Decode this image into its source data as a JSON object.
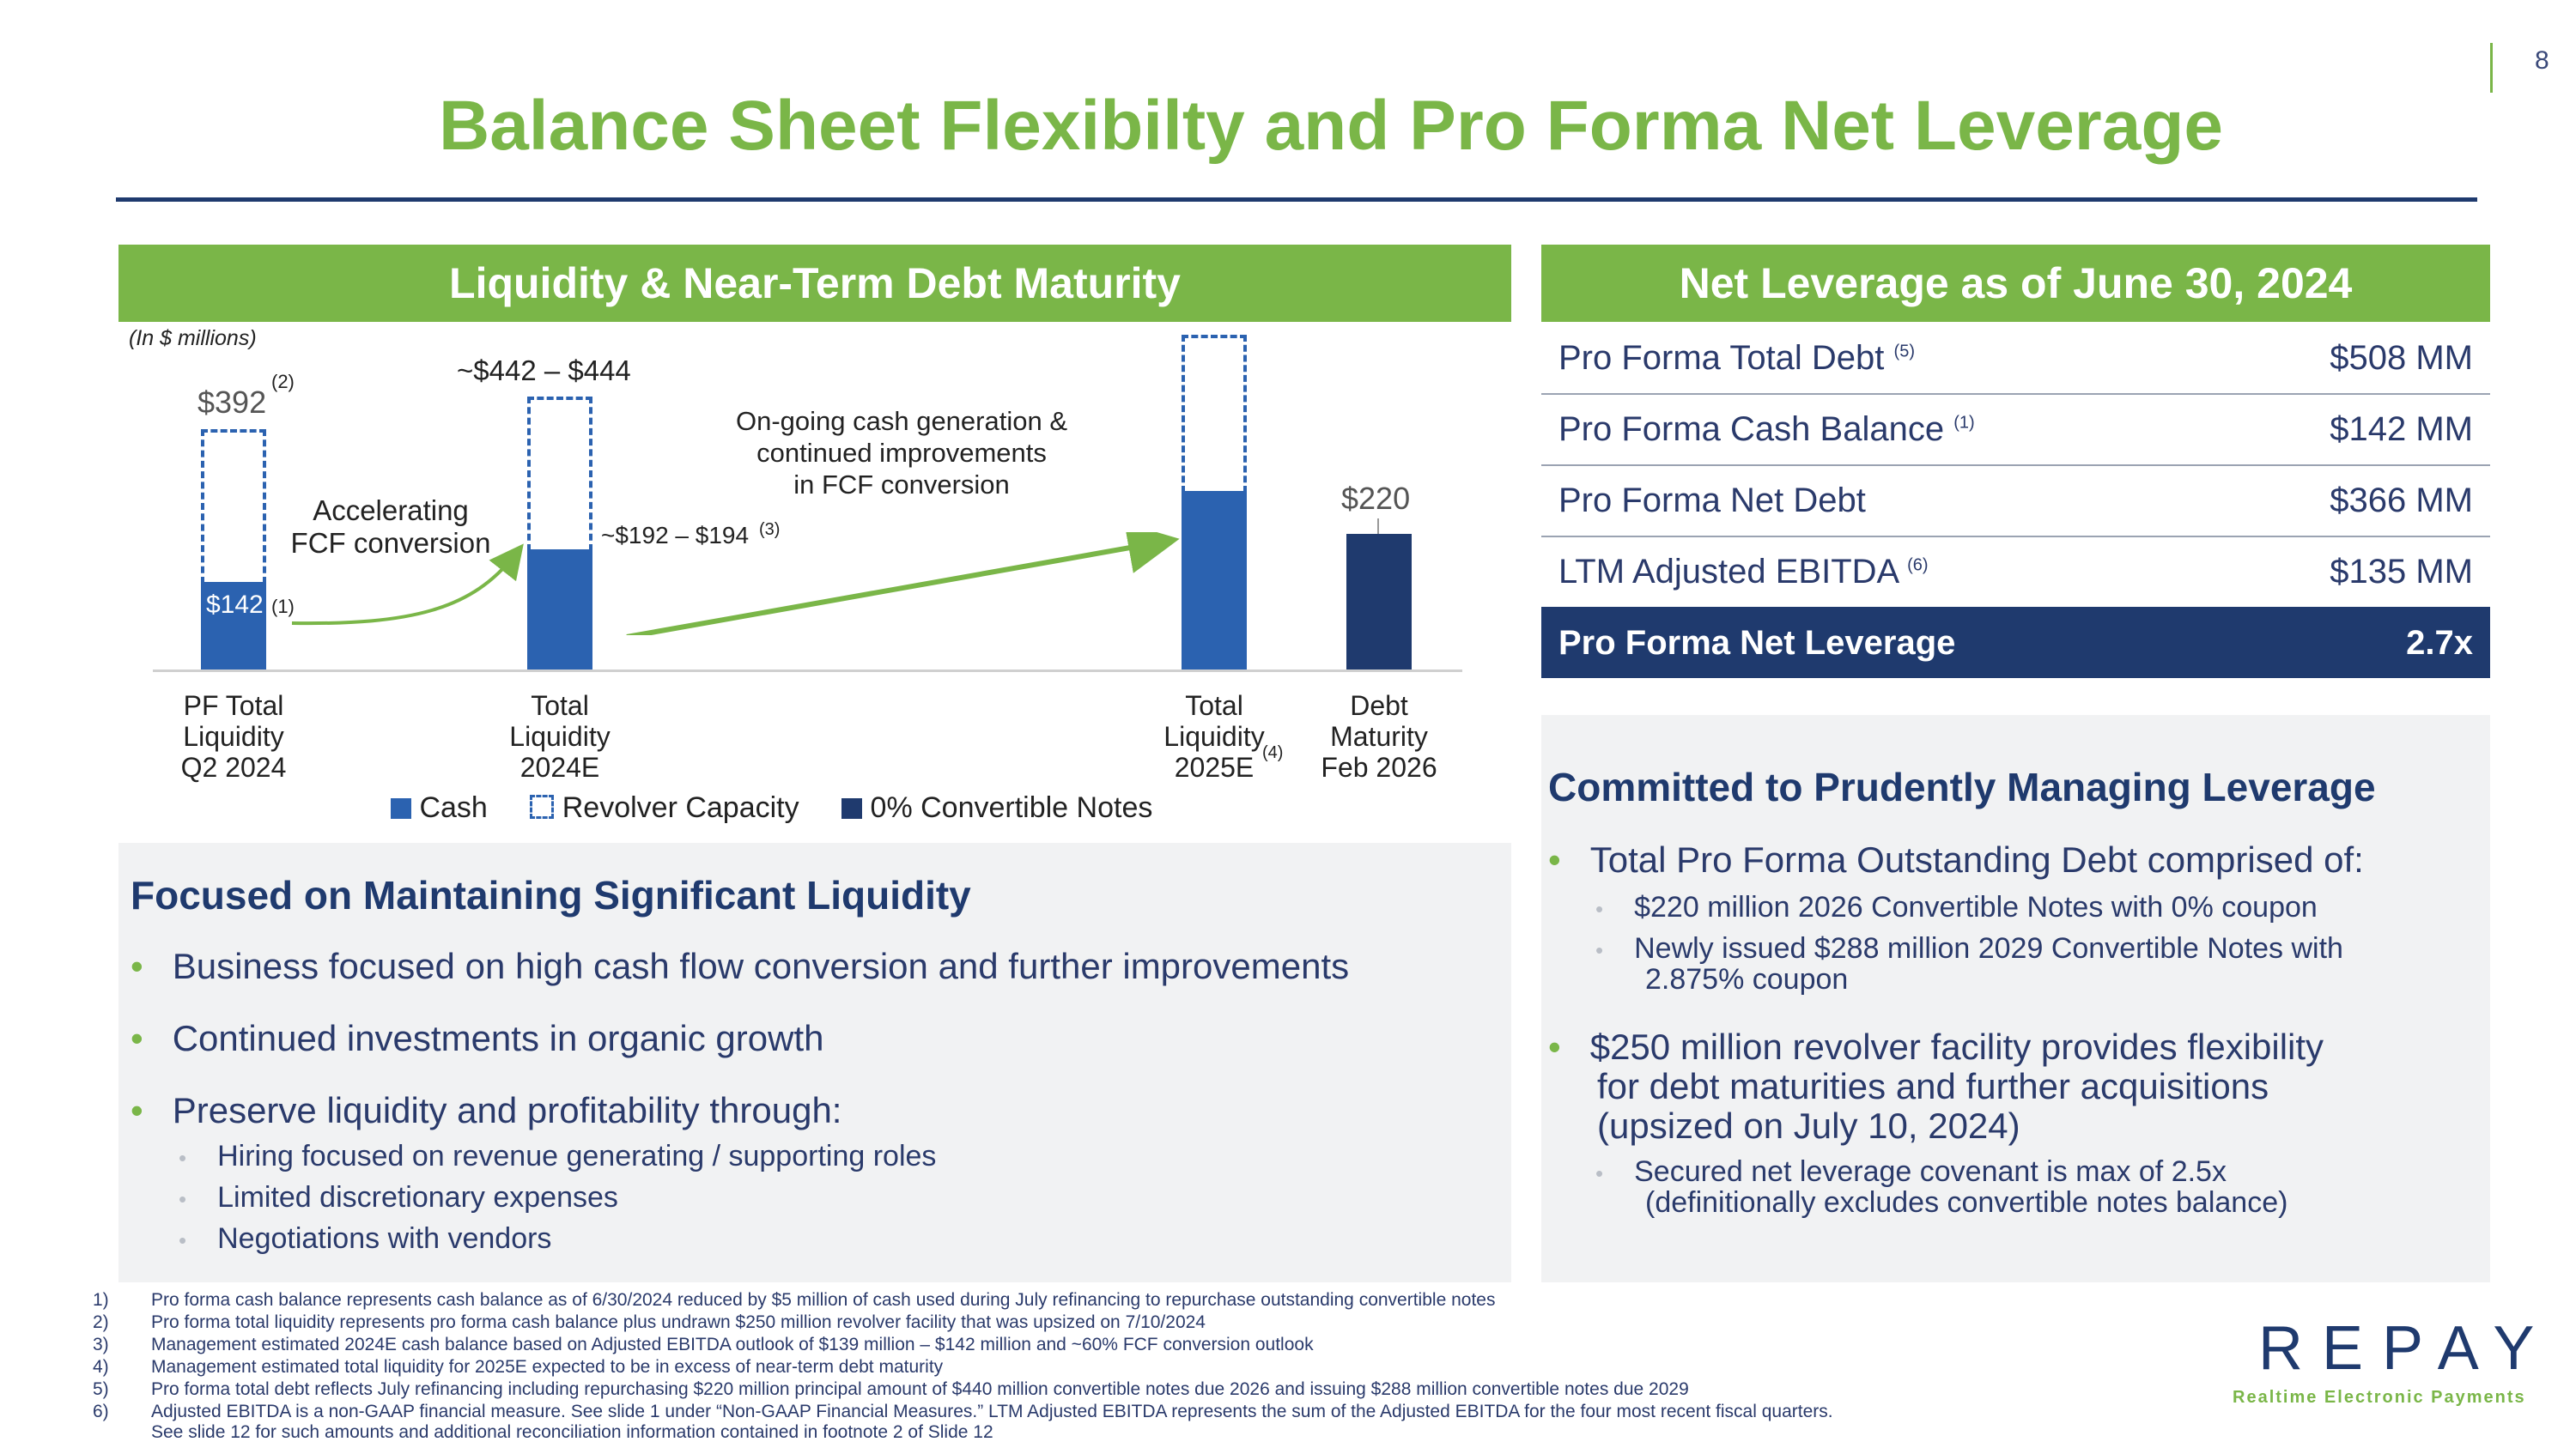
{
  "page_number": "8",
  "title": "Balance Sheet Flexibilty and Pro Forma Net Leverage",
  "liquidity": {
    "header": "Liquidity & Near-Term Debt Maturity",
    "units_note": "(In $ millions)",
    "bars": [
      {
        "label_lines": [
          "PF Total",
          "Liquidity",
          "Q2 2024"
        ],
        "total_label": "$392",
        "total_note": "(2)",
        "cash_label": "$142",
        "cash_note": "(1)"
      },
      {
        "label_lines": [
          "Total",
          "Liquidity",
          "2024E"
        ],
        "total_label": "~$442 – $444",
        "cash_label": "~$192 – $194",
        "cash_note": "(3)"
      },
      {
        "label_lines": [
          "Total",
          "Liquidity",
          "2025E"
        ],
        "label_note": "(4)"
      },
      {
        "label_lines": [
          "Debt",
          "Maturity",
          "Feb 2026"
        ],
        "total_label": "$220"
      }
    ],
    "annotation_1": [
      "Accelerating",
      "FCF conversion"
    ],
    "annotation_2": [
      "On-going cash generation &",
      "continued improvements",
      "in FCF conversion"
    ],
    "legend": {
      "cash": "Cash",
      "revolver": "Revolver Capacity",
      "convertible": "0% Convertible Notes"
    },
    "colors": {
      "cash": "#2b62b0",
      "convertible": "#1f3a6e",
      "accent": "#7ab648"
    }
  },
  "liquidity_focus": {
    "heading": "Focused on Maintaining Significant Liquidity",
    "bullets": [
      "Business focused on high cash flow conversion and further improvements",
      "Continued investments in organic growth",
      "Preserve liquidity and profitability through:"
    ],
    "sub_bullets": [
      "Hiring focused on revenue generating / supporting roles",
      "Limited discretionary expenses",
      "Negotiations with vendors"
    ]
  },
  "leverage": {
    "header": "Net Leverage as of June 30, 2024",
    "rows": [
      {
        "label": "Pro Forma Total Debt",
        "note": "(5)",
        "value": "$508 MM"
      },
      {
        "label": "Pro Forma Cash Balance",
        "note": "(1)",
        "value": "$142 MM"
      },
      {
        "label": "Pro Forma Net Debt",
        "note": "",
        "value": "$366 MM"
      },
      {
        "label": "LTM Adjusted EBITDA",
        "note": "(6)",
        "value": "$135 MM"
      }
    ],
    "total": {
      "label": "Pro Forma Net Leverage",
      "value": "2.7x"
    }
  },
  "committed": {
    "heading": "Committed to Prudently Managing Leverage",
    "bullet_1": "Total Pro Forma Outstanding Debt comprised of:",
    "sub_1a": "$220 million 2026 Convertible Notes with 0% coupon",
    "sub_1b_line1": "Newly issued $288 million 2029 Convertible Notes with",
    "sub_1b_line2": "2.875% coupon",
    "bullet_2_lines": [
      "$250 million revolver facility provides flexibility",
      "for debt maturities and further acquisitions",
      "(upsized on July 10, 2024)"
    ],
    "sub_2_line1": "Secured net leverage covenant is max of 2.5x",
    "sub_2_line2": "(definitionally excludes convertible notes balance)"
  },
  "footnotes": [
    {
      "n": "1)",
      "text": "Pro forma cash balance represents cash balance as of 6/30/2024 reduced by $5 million of cash used during July refinancing to repurchase outstanding convertible notes"
    },
    {
      "n": "2)",
      "text": "Pro forma total liquidity represents pro forma cash balance plus undrawn $250 million revolver facility that was upsized on 7/10/2024"
    },
    {
      "n": "3)",
      "text": "Management estimated 2024E cash balance based on Adjusted EBITDA outlook of $139 million – $142 million and ~60% FCF conversion outlook"
    },
    {
      "n": "4)",
      "text": "Management estimated total liquidity for 2025E expected to be in excess of near-term debt maturity"
    },
    {
      "n": "5)",
      "text": "Pro forma total debt reflects July refinancing including repurchasing $220 million principal amount of $440 million convertible notes due 2026 and issuing $288 million convertible notes due 2029"
    },
    {
      "n": "6)",
      "text": "Adjusted EBITDA is a non-GAAP financial measure.  See slide 1 under “Non-GAAP Financial Measures.”  LTM Adjusted EBITDA represents the sum of the Adjusted EBITDA for the four most recent fiscal quarters."
    },
    {
      "n": "",
      "text": "See slide 12 for such amounts and additional reconciliation information contained in footnote 2 of Slide 12"
    }
  ],
  "logo": {
    "name": "REPAY",
    "tagline": "Realtime Electronic Payments"
  }
}
